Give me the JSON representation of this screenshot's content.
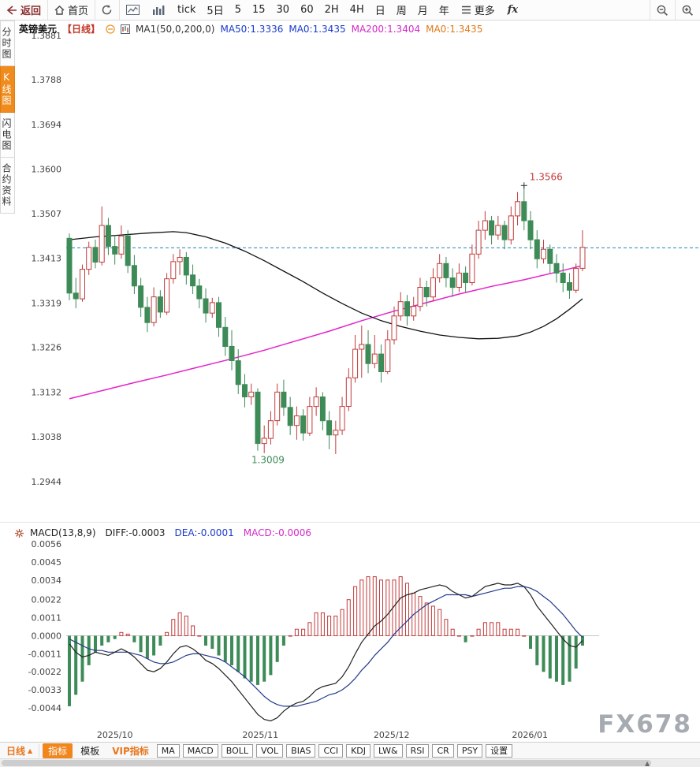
{
  "toolbar": {
    "back_label": "返回",
    "home_label": "首页",
    "tick_label": "tick",
    "periods": [
      "5日",
      "5",
      "15",
      "30",
      "60",
      "2H",
      "4H",
      "日",
      "周",
      "月",
      "年"
    ],
    "more_label": "更多",
    "fx_label": "fx"
  },
  "sidebar": {
    "items": [
      {
        "label": "分时图",
        "active": false
      },
      {
        "label": "K线图",
        "active": true
      },
      {
        "label": "闪电图",
        "active": false
      },
      {
        "label": "合约资料",
        "active": false
      }
    ]
  },
  "chart_header": {
    "symbol": "英镑美元",
    "period_tag": "【日线】",
    "ma_settings": "MA1(50,0,200,0)",
    "ma50_label": "MA50:1.3336",
    "ma50_extra": "MA0:1.3435",
    "ma200_label": "MA200:1.3404",
    "ma200_extra": "MA0:1.3435"
  },
  "macd_header": {
    "title": "MACD(13,8,9)",
    "diff_label": "DIFF:-0.0003",
    "dea_label": "DEA:-0.0001",
    "macd_label": "MACD:-0.0006"
  },
  "bottom_bar": {
    "period_selector": "日线",
    "tabs": [
      {
        "label": "指标",
        "style": "primary"
      },
      {
        "label": "模板",
        "style": "plain"
      },
      {
        "label": "VIP指标",
        "style": "vip"
      },
      {
        "label": "MA",
        "style": "boxed"
      },
      {
        "label": "MACD",
        "style": "boxed"
      },
      {
        "label": "BOLL",
        "style": "boxed"
      },
      {
        "label": "VOL",
        "style": "boxed"
      },
      {
        "label": "BIAS",
        "style": "boxed"
      },
      {
        "label": "CCI",
        "style": "boxed"
      },
      {
        "label": "KDJ",
        "style": "boxed"
      },
      {
        "label": "LW&",
        "style": "boxed"
      },
      {
        "label": "RSI",
        "style": "boxed"
      },
      {
        "label": "CR",
        "style": "boxed"
      },
      {
        "label": "PSY",
        "style": "boxed"
      },
      {
        "label": "设置",
        "style": "boxed"
      }
    ]
  },
  "watermark": "FX678",
  "colors": {
    "up": "#c23b3b",
    "down": "#3d8b57",
    "ma50": "#111111",
    "ma200": "#e423c8",
    "price_line": "#2288bb",
    "diff": "#222222",
    "dea": "#223a8c",
    "accent": "#f08c1e"
  },
  "chart_data": {
    "type": "candlestick+macd",
    "title": "英镑美元 日线 (GBP/USD Daily)",
    "price_axis_ticks": [
      1.3881,
      1.3788,
      1.3694,
      1.36,
      1.3507,
      1.3413,
      1.3319,
      1.3226,
      1.3132,
      1.3038,
      1.2944
    ],
    "price_range": [
      1.2944,
      1.3881
    ],
    "x_ticks": [
      {
        "label": "2025/10",
        "index": 7
      },
      {
        "label": "2025/11",
        "index": 29.4
      },
      {
        "label": "2025/12",
        "index": 49.6
      },
      {
        "label": "2026/01",
        "index": 70.9
      }
    ],
    "current_price_line": 1.3435,
    "annotations": {
      "high": {
        "index": 70,
        "price": 1.3566,
        "label": "1.3566"
      },
      "low": {
        "index": 29,
        "price": 1.3009,
        "label": "1.3009"
      }
    },
    "candles": [
      [
        1.3455,
        1.3465,
        1.3325,
        1.334
      ],
      [
        1.334,
        1.3372,
        1.3308,
        1.3328
      ],
      [
        1.3328,
        1.34,
        1.3322,
        1.339
      ],
      [
        1.339,
        1.3448,
        1.3378,
        1.3436
      ],
      [
        1.3436,
        1.3452,
        1.3392,
        1.3405
      ],
      [
        1.3405,
        1.3522,
        1.3398,
        1.3482
      ],
      [
        1.3482,
        1.3498,
        1.342,
        1.3438
      ],
      [
        1.3438,
        1.3462,
        1.34,
        1.3422
      ],
      [
        1.3422,
        1.3482,
        1.3412,
        1.346
      ],
      [
        1.346,
        1.3472,
        1.3382,
        1.3398
      ],
      [
        1.3398,
        1.342,
        1.3338,
        1.3355
      ],
      [
        1.3355,
        1.3372,
        1.329,
        1.331
      ],
      [
        1.331,
        1.3332,
        1.3258,
        1.3278
      ],
      [
        1.3278,
        1.3352,
        1.327,
        1.3332
      ],
      [
        1.3332,
        1.3346,
        1.3288,
        1.33
      ],
      [
        1.33,
        1.3382,
        1.3294,
        1.337
      ],
      [
        1.337,
        1.3422,
        1.336,
        1.3406
      ],
      [
        1.3406,
        1.3432,
        1.3378,
        1.3415
      ],
      [
        1.3415,
        1.3426,
        1.3358,
        1.3378
      ],
      [
        1.3378,
        1.34,
        1.3338,
        1.3355
      ],
      [
        1.3355,
        1.337,
        1.3308,
        1.3328
      ],
      [
        1.3328,
        1.335,
        1.3278,
        1.3298
      ],
      [
        1.3298,
        1.333,
        1.3288,
        1.332
      ],
      [
        1.332,
        1.3332,
        1.3248,
        1.3268
      ],
      [
        1.3268,
        1.329,
        1.3208,
        1.3228
      ],
      [
        1.3228,
        1.3262,
        1.3178,
        1.3198
      ],
      [
        1.3198,
        1.3222,
        1.3128,
        1.3148
      ],
      [
        1.3148,
        1.317,
        1.31,
        1.3122
      ],
      [
        1.3122,
        1.315,
        1.3105,
        1.3132
      ],
      [
        1.3132,
        1.314,
        1.3009,
        1.3024
      ],
      [
        1.3024,
        1.3062,
        1.3004,
        1.3035
      ],
      [
        1.3035,
        1.3092,
        1.3022,
        1.3072
      ],
      [
        1.3072,
        1.315,
        1.3062,
        1.3132
      ],
      [
        1.3132,
        1.3158,
        1.3082,
        1.31
      ],
      [
        1.31,
        1.3122,
        1.3042,
        1.3062
      ],
      [
        1.3062,
        1.3102,
        1.3032,
        1.3082
      ],
      [
        1.3082,
        1.3096,
        1.303,
        1.3046
      ],
      [
        1.3046,
        1.3122,
        1.304,
        1.3102
      ],
      [
        1.3102,
        1.3142,
        1.3082,
        1.3122
      ],
      [
        1.3122,
        1.3132,
        1.3052,
        1.3072
      ],
      [
        1.3072,
        1.3092,
        1.3012,
        1.3042
      ],
      [
        1.3042,
        1.3072,
        1.3002,
        1.3052
      ],
      [
        1.3052,
        1.3122,
        1.3042,
        1.3102
      ],
      [
        1.3102,
        1.3182,
        1.3092,
        1.3162
      ],
      [
        1.3162,
        1.3252,
        1.3152,
        1.3222
      ],
      [
        1.3222,
        1.3272,
        1.3162,
        1.3232
      ],
      [
        1.3232,
        1.3262,
        1.3172,
        1.3192
      ],
      [
        1.3192,
        1.3252,
        1.3182,
        1.3212
      ],
      [
        1.3212,
        1.3232,
        1.3152,
        1.3175
      ],
      [
        1.3175,
        1.3262,
        1.317,
        1.3242
      ],
      [
        1.3242,
        1.3312,
        1.3232,
        1.3292
      ],
      [
        1.3292,
        1.3342,
        1.3282,
        1.3322
      ],
      [
        1.3322,
        1.3336,
        1.3272,
        1.3292
      ],
      [
        1.3292,
        1.3332,
        1.3282,
        1.3312
      ],
      [
        1.3312,
        1.3372,
        1.3302,
        1.3352
      ],
      [
        1.3352,
        1.3366,
        1.3312,
        1.3332
      ],
      [
        1.3332,
        1.3392,
        1.3322,
        1.3372
      ],
      [
        1.3372,
        1.3422,
        1.3362,
        1.3402
      ],
      [
        1.3402,
        1.3416,
        1.3352,
        1.3372
      ],
      [
        1.3372,
        1.3392,
        1.3332,
        1.3352
      ],
      [
        1.3352,
        1.3402,
        1.3342,
        1.3382
      ],
      [
        1.3382,
        1.3396,
        1.3342,
        1.3362
      ],
      [
        1.3362,
        1.3442,
        1.3356,
        1.3422
      ],
      [
        1.3422,
        1.3492,
        1.3412,
        1.3472
      ],
      [
        1.3472,
        1.3512,
        1.3452,
        1.3492
      ],
      [
        1.3492,
        1.3502,
        1.3442,
        1.3462
      ],
      [
        1.3462,
        1.3502,
        1.3452,
        1.3482
      ],
      [
        1.3482,
        1.3492,
        1.3432,
        1.3452
      ],
      [
        1.3452,
        1.3522,
        1.3442,
        1.3502
      ],
      [
        1.3502,
        1.3552,
        1.3482,
        1.3532
      ],
      [
        1.3532,
        1.3566,
        1.3472,
        1.3492
      ],
      [
        1.3492,
        1.3512,
        1.3432,
        1.3452
      ],
      [
        1.3452,
        1.3472,
        1.3392,
        1.3412
      ],
      [
        1.3412,
        1.3452,
        1.3402,
        1.3432
      ],
      [
        1.3432,
        1.3442,
        1.3382,
        1.3402
      ],
      [
        1.3402,
        1.3422,
        1.3362,
        1.3382
      ],
      [
        1.3382,
        1.3402,
        1.3342,
        1.3362
      ],
      [
        1.3362,
        1.3382,
        1.3328,
        1.3346
      ],
      [
        1.3346,
        1.3402,
        1.334,
        1.3392
      ],
      [
        1.3392,
        1.3472,
        1.3386,
        1.3436
      ]
    ],
    "ma50": {
      "current": 1.3336,
      "points": [
        [
          0,
          1.3452
        ],
        [
          4,
          1.3458
        ],
        [
          8,
          1.3462
        ],
        [
          12,
          1.3466
        ],
        [
          16,
          1.3469
        ],
        [
          18,
          1.3467
        ],
        [
          21,
          1.3458
        ],
        [
          24,
          1.3445
        ],
        [
          27,
          1.3428
        ],
        [
          30,
          1.3408
        ],
        [
          33,
          1.3386
        ],
        [
          36,
          1.3364
        ],
        [
          39,
          1.334
        ],
        [
          42,
          1.3318
        ],
        [
          45,
          1.3298
        ],
        [
          48,
          1.3282
        ],
        [
          51,
          1.327
        ],
        [
          54,
          1.326
        ],
        [
          57,
          1.3252
        ],
        [
          60,
          1.3247
        ],
        [
          63,
          1.3244
        ],
        [
          66,
          1.3245
        ],
        [
          69,
          1.325
        ],
        [
          71,
          1.3258
        ],
        [
          73,
          1.327
        ],
        [
          75,
          1.3286
        ],
        [
          77,
          1.3306
        ],
        [
          79,
          1.3328
        ]
      ]
    },
    "ma200": {
      "current": 1.3404,
      "points": [
        [
          0,
          1.3118
        ],
        [
          5,
          1.3135
        ],
        [
          10,
          1.3152
        ],
        [
          15,
          1.3168
        ],
        [
          20,
          1.3185
        ],
        [
          25,
          1.3202
        ],
        [
          30,
          1.322
        ],
        [
          35,
          1.324
        ],
        [
          40,
          1.326
        ],
        [
          45,
          1.3282
        ],
        [
          50,
          1.3302
        ],
        [
          55,
          1.332
        ],
        [
          60,
          1.3338
        ],
        [
          65,
          1.3354
        ],
        [
          70,
          1.3368
        ],
        [
          75,
          1.3384
        ],
        [
          79,
          1.3398
        ]
      ]
    },
    "macd": {
      "params": "13,8,9",
      "diff_current": -0.0003,
      "dea_current": -0.0001,
      "macd_current": -0.0006,
      "axis_ticks": [
        0.0056,
        0.0045,
        0.0034,
        0.0022,
        0.0011,
        0.0,
        -0.0011,
        -0.0022,
        -0.0033,
        -0.0044
      ],
      "diff": [
        -0.0005,
        -0.001,
        -0.0013,
        -0.0012,
        -0.001,
        -0.0011,
        -0.0012,
        -0.001,
        -0.0008,
        -0.001,
        -0.0013,
        -0.0017,
        -0.0021,
        -0.0022,
        -0.002,
        -0.0016,
        -0.0011,
        -0.0007,
        -0.0006,
        -0.0008,
        -0.0011,
        -0.0015,
        -0.0017,
        -0.002,
        -0.0024,
        -0.0028,
        -0.0033,
        -0.0038,
        -0.0043,
        -0.0048,
        -0.0051,
        -0.0052,
        -0.005,
        -0.0046,
        -0.0043,
        -0.0041,
        -0.004,
        -0.0037,
        -0.0033,
        -0.0031,
        -0.003,
        -0.0029,
        -0.0025,
        -0.0019,
        -0.0011,
        -0.0004,
        0.0001,
        0.0006,
        0.0009,
        0.0013,
        0.0018,
        0.0023,
        0.0025,
        0.0026,
        0.0028,
        0.0029,
        0.003,
        0.0031,
        0.003,
        0.0027,
        0.0025,
        0.0023,
        0.0024,
        0.0027,
        0.003,
        0.0031,
        0.0032,
        0.0031,
        0.0031,
        0.0032,
        0.003,
        0.0025,
        0.0018,
        0.0013,
        0.0008,
        0.0003,
        -0.0002,
        -0.0006,
        -0.0007,
        -0.0003
      ],
      "dea": [
        -0.0002,
        -0.0004,
        -0.0006,
        -0.0008,
        -0.0009,
        -0.0009,
        -0.001,
        -0.001,
        -0.001,
        -0.001,
        -0.0011,
        -0.0012,
        -0.0014,
        -0.0016,
        -0.0017,
        -0.0017,
        -0.0016,
        -0.0014,
        -0.0012,
        -0.0011,
        -0.0011,
        -0.0012,
        -0.0013,
        -0.0014,
        -0.0016,
        -0.0019,
        -0.0022,
        -0.0025,
        -0.0029,
        -0.0033,
        -0.0037,
        -0.004,
        -0.0042,
        -0.0043,
        -0.0043,
        -0.0043,
        -0.0042,
        -0.0041,
        -0.004,
        -0.0038,
        -0.0036,
        -0.0035,
        -0.0033,
        -0.003,
        -0.0026,
        -0.0021,
        -0.0017,
        -0.0012,
        -0.0008,
        -0.0004,
        0.0001,
        0.0005,
        0.0009,
        0.0013,
        0.0016,
        0.0019,
        0.0021,
        0.0023,
        0.0025,
        0.0025,
        0.0025,
        0.0025,
        0.0024,
        0.0025,
        0.0026,
        0.0027,
        0.0028,
        0.0029,
        0.0029,
        0.003,
        0.003,
        0.0029,
        0.0027,
        0.0024,
        0.0021,
        0.0017,
        0.0013,
        0.0008,
        0.0003,
        -0.0001
      ],
      "hist": [
        -0.0043,
        -0.0036,
        -0.0028,
        -0.0018,
        -0.001,
        -0.0006,
        -0.0004,
        -0.0002,
        0.0002,
        0.0001,
        -0.0004,
        -0.001,
        -0.0014,
        -0.0012,
        -0.0006,
        0.0002,
        0.001,
        0.0014,
        0.0012,
        0.0006,
        0.0,
        -0.0006,
        -0.0008,
        -0.0012,
        -0.0016,
        -0.0018,
        -0.0022,
        -0.0026,
        -0.0028,
        -0.003,
        -0.0028,
        -0.0024,
        -0.0016,
        -0.0006,
        0.0,
        0.0004,
        0.0004,
        0.0008,
        0.0014,
        0.0014,
        0.0012,
        0.0012,
        0.0016,
        0.0022,
        0.003,
        0.0034,
        0.0036,
        0.0036,
        0.0034,
        0.0034,
        0.0034,
        0.0036,
        0.0032,
        0.0026,
        0.0024,
        0.002,
        0.0018,
        0.0016,
        0.001,
        0.0004,
        0.0,
        -0.0004,
        0.0,
        0.0004,
        0.0008,
        0.0008,
        0.0008,
        0.0004,
        0.0004,
        0.0004,
        0.0,
        -0.0008,
        -0.0018,
        -0.0022,
        -0.0026,
        -0.0028,
        -0.003,
        -0.0028,
        -0.002,
        -0.0006
      ]
    }
  }
}
